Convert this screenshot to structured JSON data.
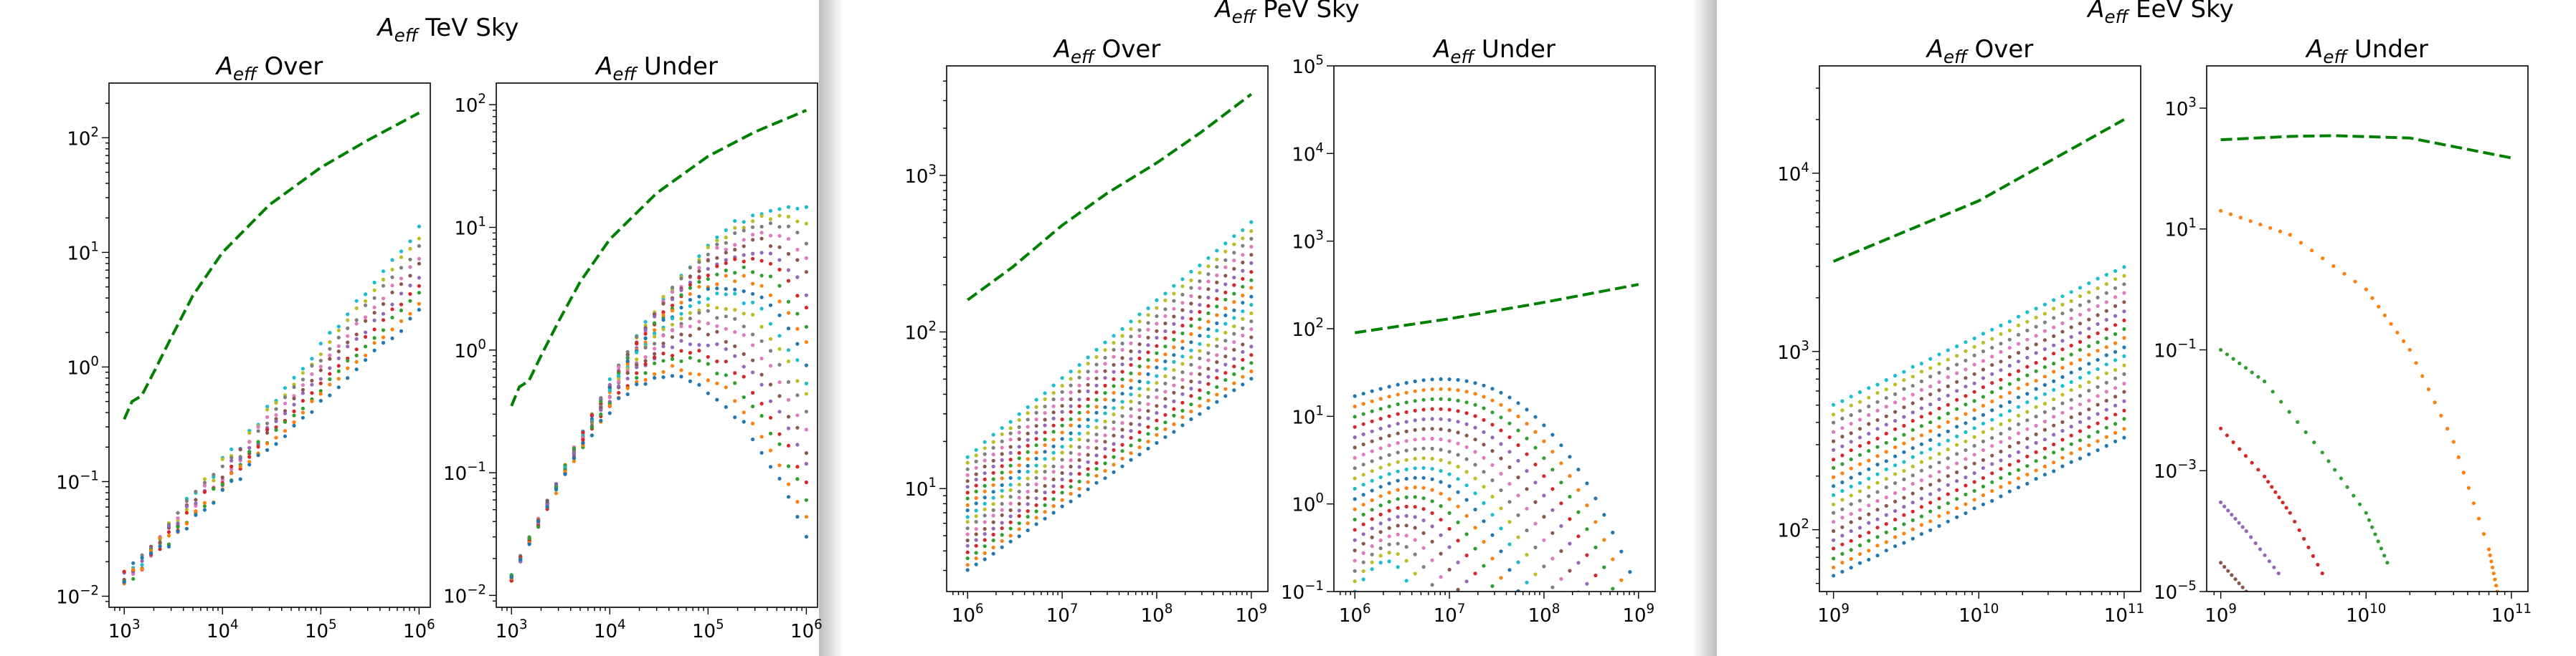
{
  "colors": {
    "dashed_series": "#008000",
    "palette": [
      "#1f77b4",
      "#ff7f0e",
      "#2ca02c",
      "#d62728",
      "#9467bd",
      "#8c564b",
      "#e377c2",
      "#7f7f7f",
      "#bcbd22",
      "#17becf"
    ]
  },
  "chart_data": [
    {
      "figure": "TeV",
      "suptitle": "A_eff TeV Sky",
      "suptitle_main": "A",
      "suptitle_sub": "eff",
      "suptitle_rest": " TeV Sky",
      "subplots": [
        {
          "type": "scatter",
          "title_main": "A",
          "title_sub": "eff",
          "title_rest": " Over",
          "xscale": "log",
          "yscale": "log",
          "xlim": [
            700,
            1300000
          ],
          "ylim": [
            0.008,
            300
          ],
          "xticks": [
            1000,
            10000,
            100000,
            1000000
          ],
          "xticklabels": [
            [
              "10",
              "3"
            ],
            [
              "10",
              "4"
            ],
            [
              "10",
              "5"
            ],
            [
              "10",
              "6"
            ]
          ],
          "yticks": [
            0.01,
            0.1,
            1,
            10,
            100
          ],
          "yticklabels": [
            [
              "10",
              "−2"
            ],
            [
              "10",
              "−1"
            ],
            [
              "10",
              "0"
            ],
            [
              "10",
              "1"
            ],
            [
              "10",
              "2"
            ]
          ],
          "x_range": [
            1000,
            1000000
          ],
          "dashed": {
            "name": "",
            "values": [
              [
                1000,
                0.35
              ],
              [
                1200,
                0.5
              ],
              [
                1500,
                0.56
              ],
              [
                2000,
                0.9
              ],
              [
                3000,
                1.8
              ],
              [
                5000,
                4.2
              ],
              [
                10000,
                10
              ],
              [
                30000,
                26
              ],
              [
                100000,
                55
              ],
              [
                300000,
                95
              ],
              [
                1000000,
                165
              ]
            ]
          },
          "families": [
            {
              "kind": "rising",
              "count": 10,
              "start": [
                0.014,
                0.014
              ],
              "end": [
                3,
                16
              ],
              "knee_x": 10000,
              "noise": 0.15
            }
          ]
        },
        {
          "type": "scatter",
          "title_main": "A",
          "title_sub": "eff",
          "title_rest": " Under",
          "xscale": "log",
          "yscale": "log",
          "xlim": [
            700,
            1300000
          ],
          "ylim": [
            0.008,
            150
          ],
          "xticks": [
            1000,
            10000,
            100000,
            1000000
          ],
          "xticklabels": [
            [
              "10",
              "3"
            ],
            [
              "10",
              "4"
            ],
            [
              "10",
              "5"
            ],
            [
              "10",
              "6"
            ]
          ],
          "yticks": [
            0.01,
            0.1,
            1,
            10,
            100
          ],
          "yticklabels": [
            [
              "10",
              "−2"
            ],
            [
              "10",
              "−1"
            ],
            [
              "10",
              "0"
            ],
            [
              "10",
              "1"
            ],
            [
              "10",
              "2"
            ]
          ],
          "x_range": [
            1000,
            1000000
          ],
          "dashed": {
            "name": "",
            "values": [
              [
                1000,
                0.35
              ],
              [
                1200,
                0.5
              ],
              [
                1500,
                0.56
              ],
              [
                2000,
                0.9
              ],
              [
                3000,
                1.7
              ],
              [
                5000,
                3.6
              ],
              [
                10000,
                8
              ],
              [
                30000,
                19
              ],
              [
                100000,
                38
              ],
              [
                300000,
                60
              ],
              [
                1000000,
                90
              ]
            ]
          },
          "families": [
            {
              "kind": "rise_fall",
              "count": 20,
              "start": [
                0.014,
                0.014
              ],
              "peak_x": [
                40000,
                700000
              ],
              "peak_y": [
                0.6,
                15
              ],
              "end": [
                0.03,
                15
              ]
            }
          ]
        }
      ]
    },
    {
      "figure": "PeV",
      "suptitle": "A_eff PeV Sky",
      "suptitle_main": "A",
      "suptitle_sub": "eff",
      "suptitle_rest": " PeV Sky",
      "subplots": [
        {
          "type": "scatter",
          "title_main": "A",
          "title_sub": "eff",
          "title_rest": " Over",
          "xscale": "log",
          "yscale": "log",
          "xlim": [
            600000,
            1500000000
          ],
          "ylim": [
            2.2,
            5000
          ],
          "xticks": [
            1000000,
            10000000,
            100000000,
            1000000000
          ],
          "xticklabels": [
            [
              "10",
              "6"
            ],
            [
              "10",
              "7"
            ],
            [
              "10",
              "8"
            ],
            [
              "10",
              "9"
            ]
          ],
          "yticks": [
            10,
            100,
            1000
          ],
          "yticklabels": [
            [
              "10",
              "1"
            ],
            [
              "10",
              "2"
            ],
            [
              "10",
              "3"
            ]
          ],
          "x_range": [
            1000000,
            1000000000
          ],
          "dashed": {
            "name": "",
            "values": [
              [
                1000000,
                160
              ],
              [
                3000000,
                260
              ],
              [
                10000000,
                480
              ],
              [
                30000000,
                770
              ],
              [
                100000000,
                1200
              ],
              [
                300000000,
                1900
              ],
              [
                1000000000,
                3300
              ]
            ]
          },
          "families": [
            {
              "kind": "rising",
              "count": 20,
              "start": [
                3,
                16
              ],
              "end": [
                50,
                500
              ],
              "knee_x": 0,
              "noise": 0.03
            }
          ]
        },
        {
          "type": "scatter",
          "title_main": "A",
          "title_sub": "eff",
          "title_rest": " Under",
          "xscale": "log",
          "yscale": "log",
          "xlim": [
            600000,
            1500000000
          ],
          "ylim": [
            0.1,
            100000
          ],
          "xticks": [
            1000000,
            10000000,
            100000000,
            1000000000
          ],
          "xticklabels": [
            [
              "10",
              "6"
            ],
            [
              "10",
              "7"
            ],
            [
              "10",
              "8"
            ],
            [
              "10",
              "9"
            ]
          ],
          "yticks": [
            0.1,
            1,
            10,
            100,
            1000,
            10000,
            100000
          ],
          "yticklabels": [
            [
              "10",
              "−1"
            ],
            [
              "10",
              "0"
            ],
            [
              "10",
              "1"
            ],
            [
              "10",
              "2"
            ],
            [
              "10",
              "3"
            ],
            [
              "10",
              "4"
            ],
            [
              "10",
              "5"
            ]
          ],
          "x_range": [
            1000000,
            1000000000
          ],
          "dashed": {
            "name": "",
            "values": [
              [
                1000000,
                90
              ],
              [
                10000000,
                130
              ],
              [
                100000000,
                200
              ],
              [
                1000000000,
                320
              ]
            ]
          },
          "families": [
            {
              "kind": "falling",
              "count": 20,
              "start": [
                0.1,
                17
              ],
              "peak_x": [
                1000000,
                100000000
              ],
              "end_x": [
                4000000,
                1000000000
              ]
            }
          ]
        }
      ]
    },
    {
      "figure": "EeV",
      "suptitle": "A_eff EeV Sky",
      "suptitle_main": "A",
      "suptitle_sub": "eff",
      "suptitle_rest": " EeV Sky",
      "subplots": [
        {
          "type": "scatter",
          "title_main": "A",
          "title_sub": "eff",
          "title_rest": " Over",
          "xscale": "log",
          "yscale": "log",
          "xlim": [
            800000000,
            130000000000
          ],
          "ylim": [
            45,
            40000
          ],
          "xticks": [
            1000000000,
            10000000000,
            100000000000
          ],
          "xticklabels": [
            [
              "10",
              "9"
            ],
            [
              "10",
              "10"
            ],
            [
              "10",
              "11"
            ]
          ],
          "yticks": [
            100,
            1000,
            10000
          ],
          "yticklabels": [
            [
              "10",
              "2"
            ],
            [
              "10",
              "3"
            ],
            [
              "10",
              "4"
            ]
          ],
          "x_range": [
            1000000000,
            100000000000
          ],
          "dashed": {
            "name": "",
            "values": [
              [
                1000000000,
                3200
              ],
              [
                10000000000,
                7000
              ],
              [
                100000000000,
                20000
              ]
            ]
          },
          "families": [
            {
              "kind": "rising",
              "count": 20,
              "start": [
                55,
                500
              ],
              "end": [
                330,
                3000
              ],
              "knee_x": 0,
              "noise": 0.02
            }
          ]
        },
        {
          "type": "scatter",
          "title_main": "A",
          "title_sub": "eff",
          "title_rest": " Under",
          "xscale": "log",
          "yscale": "log",
          "xlim": [
            800000000,
            130000000000
          ],
          "ylim": [
            1e-05,
            5000
          ],
          "xticks": [
            1000000000,
            10000000000,
            100000000000
          ],
          "xticklabels": [
            [
              "10",
              "9"
            ],
            [
              "10",
              "10"
            ],
            [
              "10",
              "11"
            ]
          ],
          "yticks": [
            1e-05,
            0.001,
            0.1,
            10,
            1000
          ],
          "yticklabels": [
            [
              "10",
              "−5"
            ],
            [
              "10",
              "−3"
            ],
            [
              "10",
              "−1"
            ],
            [
              "10",
              "1"
            ],
            [
              "10",
              "3"
            ]
          ],
          "x_range": [
            1000000000,
            100000000000
          ],
          "dashed": {
            "name": "",
            "values": [
              [
                1000000000,
                300
              ],
              [
                3000000000,
                340
              ],
              [
                6000000000,
                350
              ],
              [
                20000000000,
                320
              ],
              [
                100000000000,
                150
              ]
            ]
          },
          "families": [
            {
              "kind": "explicit_dotted",
              "color_index": 1,
              "values": [
                [
                  1000000000,
                  20
                ],
                [
                  3000000000,
                  8
                ],
                [
                  10000000000,
                  1
                ],
                [
                  20000000000,
                  0.1
                ],
                [
                  40000000000,
                  0.003
                ],
                [
                  70000000000,
                  5e-05
                ],
                [
                  80000000000,
                  1e-05
                ]
              ]
            },
            {
              "kind": "explicit_dotted",
              "color_index": 2,
              "values": [
                [
                  1000000000,
                  0.1
                ],
                [
                  2000000000,
                  0.03
                ],
                [
                  5000000000,
                  0.002
                ],
                [
                  10000000000,
                  0.0002
                ],
                [
                  14000000000,
                  3e-05
                ]
              ]
            },
            {
              "kind": "explicit_dotted",
              "color_index": 3,
              "values": [
                [
                  1000000000,
                  0.005
                ],
                [
                  2000000000,
                  0.0008
                ],
                [
                  3000000000,
                  0.0002
                ],
                [
                  5000000000,
                  2e-05
                ]
              ]
            },
            {
              "kind": "explicit_dotted",
              "color_index": 4,
              "values": [
                [
                  1000000000,
                  0.0003
                ],
                [
                  1500000000,
                  0.0001
                ],
                [
                  2500000000,
                  2e-05
                ]
              ]
            },
            {
              "kind": "explicit_dotted",
              "color_index": 5,
              "values": [
                [
                  1000000000,
                  3e-05
                ],
                [
                  1500000000,
                  1e-05
                ]
              ]
            }
          ]
        }
      ]
    }
  ]
}
